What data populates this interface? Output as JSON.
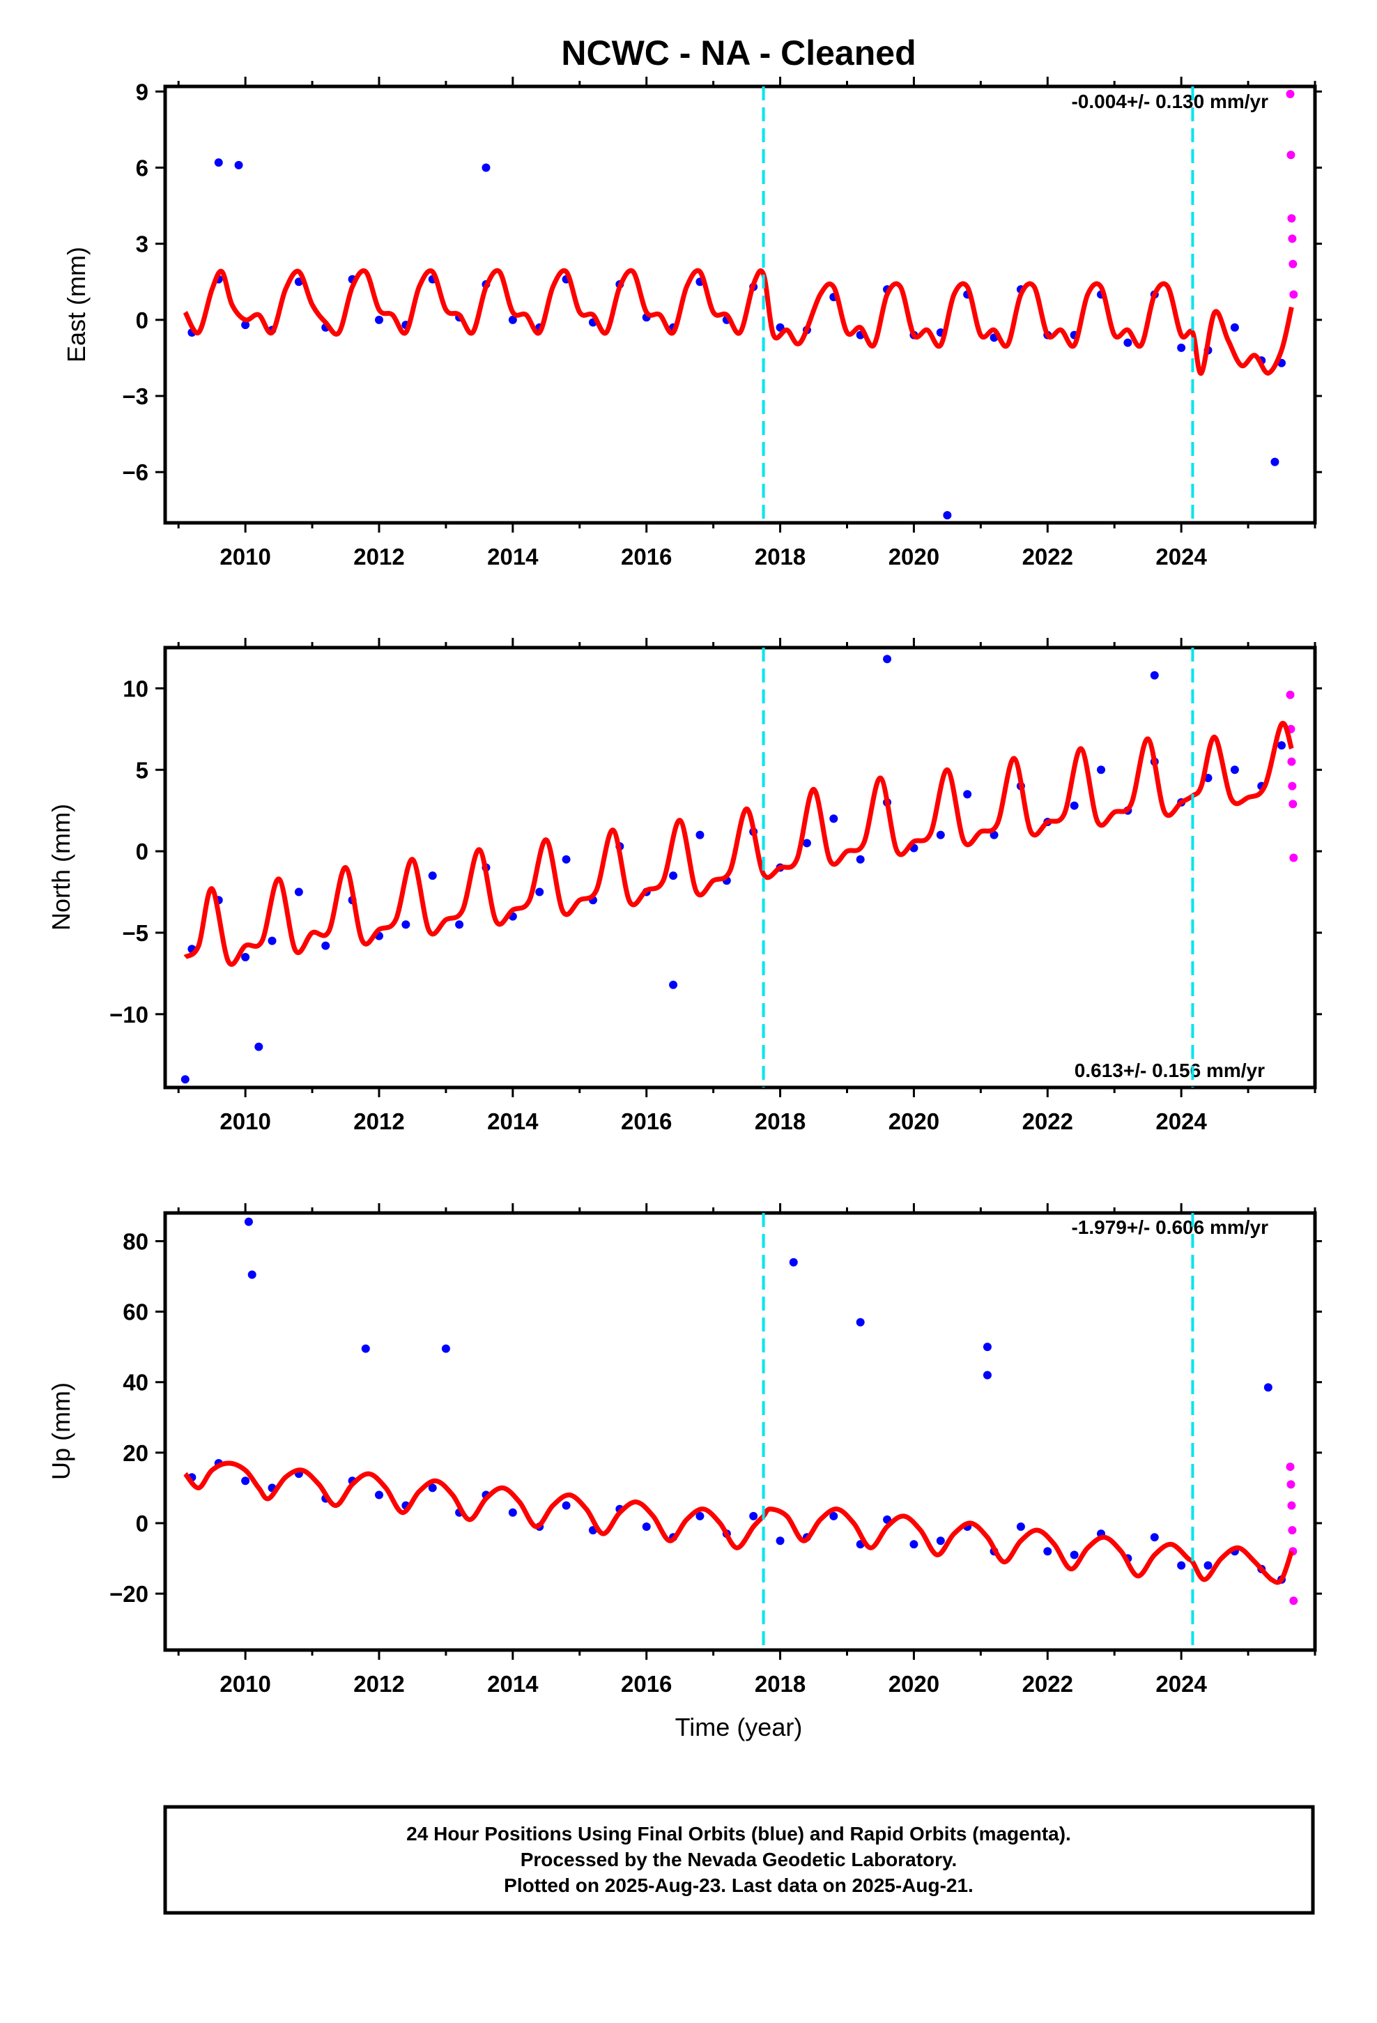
{
  "title": "NCWC  - NA - Cleaned",
  "xlabel": "Time (year)",
  "x_ticks": [
    2010,
    2012,
    2014,
    2016,
    2018,
    2020,
    2022,
    2024
  ],
  "xlim": [
    2008.8,
    2026.0
  ],
  "equipment_change_epochs": [
    2017.75,
    2024.17
  ],
  "colors": {
    "final_orbits": "#0000ff",
    "rapid_orbits": "#ff00ff",
    "model": "#ff0000",
    "equipment_change": "#00e5ee"
  },
  "footer": {
    "line1": "24 Hour Positions Using Final Orbits (blue) and Rapid Orbits (magenta).",
    "line2": "Processed by the Nevada Geodetic Laboratory.",
    "line3": "Plotted on 2025-Aug-23. Last data on 2025-Aug-21."
  },
  "chart_data": [
    {
      "type": "scatter",
      "id": "east",
      "ylabel": "East (mm)",
      "ylim": [
        -8,
        9.2
      ],
      "y_ticks": [
        9,
        6,
        3,
        0,
        -3,
        -6
      ],
      "y_tick_labels": [
        "9",
        "6",
        "3",
        "0",
        "−3",
        "−6"
      ],
      "rate_text": "-0.004+/- 0.130 mm/yr",
      "rate_position": "top-right",
      "series": [
        {
          "name": "Final Orbits",
          "x": [
            2009.2,
            2009.6,
            2010.0,
            2010.4,
            2010.8,
            2011.2,
            2011.6,
            2012.0,
            2012.4,
            2012.8,
            2013.2,
            2013.6,
            2014.0,
            2014.4,
            2014.8,
            2015.2,
            2015.6,
            2016.0,
            2016.4,
            2016.8,
            2017.2,
            2017.6,
            2018.0,
            2018.4,
            2018.8,
            2019.2,
            2019.6,
            2020.0,
            2020.4,
            2020.8,
            2021.2,
            2021.6,
            2022.0,
            2022.4,
            2022.8,
            2023.2,
            2023.6,
            2024.0,
            2024.4,
            2024.8,
            2025.2,
            2025.5
          ],
          "y": [
            -0.5,
            1.6,
            -0.2,
            -0.4,
            1.5,
            -0.3,
            1.6,
            0.0,
            -0.2,
            1.6,
            0.1,
            1.4,
            0.0,
            -0.3,
            1.6,
            -0.1,
            1.4,
            0.1,
            -0.3,
            1.5,
            0.0,
            1.3,
            -0.3,
            -0.4,
            0.9,
            -0.6,
            1.2,
            -0.6,
            -0.5,
            1.0,
            -0.7,
            1.2,
            -0.6,
            -0.6,
            1.0,
            -0.9,
            1.0,
            -1.1,
            -1.2,
            -0.3,
            -1.6,
            -1.7
          ]
        },
        {
          "name": "Rapid Orbits",
          "x": [
            2025.63,
            2025.64,
            2025.65,
            2025.66,
            2025.67,
            2025.68
          ],
          "y": [
            8.9,
            6.5,
            4.0,
            3.2,
            2.2,
            1.0
          ]
        }
      ],
      "outliers": {
        "x": [
          2009.6,
          2009.9,
          2013.6,
          2020.5,
          2025.4
        ],
        "y": [
          6.2,
          6.1,
          6.0,
          -7.7,
          -5.6
        ]
      },
      "model": {
        "x": [
          2009.1,
          2009.3,
          2009.5,
          2009.65,
          2009.8,
          2010.0,
          2010.2,
          2010.4,
          2010.6,
          2010.8,
          2011.0,
          2011.2,
          2011.4,
          2011.6,
          2011.8,
          2012.0,
          2012.2,
          2012.4,
          2012.6,
          2012.8,
          2013.0,
          2013.2,
          2013.4,
          2013.6,
          2013.8,
          2014.0,
          2014.2,
          2014.4,
          2014.6,
          2014.8,
          2015.0,
          2015.2,
          2015.4,
          2015.6,
          2015.8,
          2016.0,
          2016.2,
          2016.4,
          2016.6,
          2016.8,
          2017.0,
          2017.2,
          2017.4,
          2017.6,
          2017.75,
          2017.9,
          2018.1,
          2018.3,
          2018.6,
          2018.8,
          2019.0,
          2019.2,
          2019.4,
          2019.6,
          2019.8,
          2020.0,
          2020.2,
          2020.4,
          2020.6,
          2020.8,
          2021.0,
          2021.2,
          2021.4,
          2021.6,
          2021.8,
          2022.0,
          2022.2,
          2022.4,
          2022.6,
          2022.8,
          2023.0,
          2023.2,
          2023.4,
          2023.6,
          2023.8,
          2024.0,
          2024.17,
          2024.3,
          2024.5,
          2024.7,
          2024.9,
          2025.1,
          2025.3,
          2025.5,
          2025.65
        ],
        "y": [
          0.3,
          -0.5,
          1.2,
          1.9,
          0.6,
          0.0,
          0.2,
          -0.5,
          1.2,
          1.9,
          0.6,
          -0.1,
          -0.5,
          1.3,
          1.9,
          0.4,
          0.2,
          -0.5,
          1.3,
          1.9,
          0.4,
          0.2,
          -0.5,
          1.3,
          1.9,
          0.3,
          0.2,
          -0.5,
          1.3,
          1.9,
          0.3,
          0.2,
          -0.5,
          1.3,
          1.9,
          0.3,
          0.2,
          -0.5,
          1.3,
          1.9,
          0.3,
          0.2,
          -0.5,
          1.4,
          1.8,
          -0.6,
          -0.4,
          -0.9,
          1.0,
          1.3,
          -0.5,
          -0.3,
          -1.0,
          1.0,
          1.3,
          -0.6,
          -0.4,
          -1.0,
          1.0,
          1.3,
          -0.6,
          -0.4,
          -1.0,
          1.0,
          1.3,
          -0.6,
          -0.4,
          -1.0,
          1.0,
          1.3,
          -0.6,
          -0.4,
          -1.0,
          1.0,
          1.3,
          -0.6,
          -0.5,
          -2.1,
          0.3,
          -0.8,
          -1.8,
          -1.4,
          -2.1,
          -1.2,
          0.5
        ]
      }
    },
    {
      "type": "scatter",
      "id": "north",
      "ylabel": "North (mm)",
      "ylim": [
        -14.5,
        12.5
      ],
      "y_ticks": [
        10,
        5,
        0,
        -5,
        -10
      ],
      "y_tick_labels": [
        "10",
        "5",
        "0",
        "−5",
        "−10"
      ],
      "rate_text": "0.613+/- 0.156 mm/yr",
      "rate_position": "bottom-right",
      "series": [
        {
          "name": "Final Orbits",
          "x": [
            2009.2,
            2009.6,
            2010.0,
            2010.4,
            2010.8,
            2011.2,
            2011.6,
            2012.0,
            2012.4,
            2012.8,
            2013.2,
            2013.6,
            2014.0,
            2014.4,
            2014.8,
            2015.2,
            2015.6,
            2016.0,
            2016.4,
            2016.8,
            2017.2,
            2017.6,
            2018.0,
            2018.4,
            2018.8,
            2019.2,
            2019.6,
            2020.0,
            2020.4,
            2020.8,
            2021.2,
            2021.6,
            2022.0,
            2022.4,
            2022.8,
            2023.2,
            2023.6,
            2024.0,
            2024.4,
            2024.8,
            2025.2,
            2025.5
          ],
          "y": [
            -6.0,
            -3.0,
            -6.5,
            -5.5,
            -2.5,
            -5.8,
            -3.0,
            -5.2,
            -4.5,
            -1.5,
            -4.5,
            -1.0,
            -4.0,
            -2.5,
            -0.5,
            -3.0,
            0.3,
            -2.5,
            -1.5,
            1.0,
            -1.8,
            1.2,
            -1.0,
            0.5,
            2.0,
            -0.5,
            3.0,
            0.2,
            1.0,
            3.5,
            1.0,
            4.0,
            1.8,
            2.8,
            5.0,
            2.5,
            5.5,
            3.0,
            4.5,
            5.0,
            4.0,
            6.5
          ]
        },
        {
          "name": "Rapid Orbits",
          "x": [
            2025.63,
            2025.64,
            2025.65,
            2025.66,
            2025.67,
            2025.68
          ],
          "y": [
            9.6,
            7.5,
            5.5,
            4.0,
            2.9,
            -0.4
          ]
        }
      ],
      "outliers": {
        "x": [
          2009.1,
          2010.2,
          2016.4,
          2019.6,
          2023.6
        ],
        "y": [
          -14.0,
          -12.0,
          -8.2,
          11.8,
          10.8
        ]
      },
      "model": {
        "x": [
          2009.1,
          2009.3,
          2009.5,
          2009.75,
          2010.0,
          2010.25,
          2010.5,
          2010.75,
          2011.0,
          2011.25,
          2011.5,
          2011.75,
          2012.0,
          2012.25,
          2012.5,
          2012.75,
          2013.0,
          2013.25,
          2013.5,
          2013.75,
          2014.0,
          2014.25,
          2014.5,
          2014.75,
          2015.0,
          2015.25,
          2015.5,
          2015.75,
          2016.0,
          2016.25,
          2016.5,
          2016.75,
          2017.0,
          2017.25,
          2017.5,
          2017.75,
          2018.0,
          2018.25,
          2018.5,
          2018.75,
          2019.0,
          2019.25,
          2019.5,
          2019.75,
          2020.0,
          2020.25,
          2020.5,
          2020.75,
          2021.0,
          2021.25,
          2021.5,
          2021.75,
          2022.0,
          2022.25,
          2022.5,
          2022.75,
          2023.0,
          2023.25,
          2023.5,
          2023.75,
          2024.0,
          2024.17,
          2024.3,
          2024.5,
          2024.75,
          2025.0,
          2025.25,
          2025.5,
          2025.65
        ],
        "y": [
          -6.5,
          -5.8,
          -2.3,
          -6.8,
          -5.8,
          -5.5,
          -1.7,
          -6.1,
          -5.0,
          -4.9,
          -1.0,
          -5.5,
          -4.8,
          -4.2,
          -0.5,
          -4.9,
          -4.2,
          -3.6,
          0.1,
          -4.3,
          -3.6,
          -3.0,
          0.7,
          -3.7,
          -3.0,
          -2.4,
          1.3,
          -3.1,
          -2.4,
          -1.8,
          1.9,
          -2.5,
          -1.8,
          -1.2,
          2.6,
          -1.4,
          -1.0,
          -0.5,
          3.8,
          -0.6,
          0.0,
          0.5,
          4.5,
          0.0,
          0.6,
          1.1,
          5.0,
          0.6,
          1.2,
          1.7,
          5.7,
          1.2,
          1.8,
          2.3,
          6.3,
          1.8,
          2.4,
          2.9,
          6.9,
          2.4,
          3.0,
          3.4,
          4.0,
          7.0,
          3.2,
          3.3,
          4.0,
          7.8,
          6.3
        ]
      }
    },
    {
      "type": "scatter",
      "id": "up",
      "ylabel": "Up (mm)",
      "ylim": [
        -36,
        88
      ],
      "y_ticks": [
        80,
        60,
        40,
        20,
        0,
        -20
      ],
      "y_tick_labels": [
        "80",
        "60",
        "40",
        "20",
        "0",
        "−20"
      ],
      "rate_text": "-1.979+/- 0.606 mm/yr",
      "rate_position": "top-right",
      "series": [
        {
          "name": "Final Orbits",
          "x": [
            2009.2,
            2009.6,
            2010.0,
            2010.4,
            2010.8,
            2011.2,
            2011.6,
            2012.0,
            2012.4,
            2012.8,
            2013.2,
            2013.6,
            2014.0,
            2014.4,
            2014.8,
            2015.2,
            2015.6,
            2016.0,
            2016.4,
            2016.8,
            2017.2,
            2017.6,
            2018.0,
            2018.4,
            2018.8,
            2019.2,
            2019.6,
            2020.0,
            2020.4,
            2020.8,
            2021.2,
            2021.6,
            2022.0,
            2022.4,
            2022.8,
            2023.2,
            2023.6,
            2024.0,
            2024.4,
            2024.8,
            2025.2,
            2025.5
          ],
          "y": [
            13,
            17,
            12,
            10,
            14,
            7,
            12,
            8,
            5,
            10,
            3,
            8,
            3,
            -1,
            5,
            -2,
            4,
            -1,
            -4,
            2,
            -3,
            2,
            -5,
            -4,
            2,
            -6,
            1,
            -6,
            -5,
            -1,
            -8,
            -1,
            -8,
            -9,
            -3,
            -10,
            -4,
            -12,
            -12,
            -8,
            -13,
            -16
          ]
        },
        {
          "name": "Rapid Orbits",
          "x": [
            2025.63,
            2025.64,
            2025.65,
            2025.66,
            2025.67,
            2025.68
          ],
          "y": [
            16,
            11,
            5,
            -2,
            -8,
            -22
          ]
        }
      ],
      "outliers": {
        "x": [
          2010.05,
          2010.1,
          2011.8,
          2013.0,
          2018.2,
          2019.2,
          2021.1,
          2021.1,
          2025.3
        ],
        "y": [
          85.5,
          70.5,
          49.5,
          49.5,
          74,
          57,
          50,
          42,
          38.5
        ]
      },
      "model": {
        "x": [
          2009.1,
          2009.3,
          2009.5,
          2009.75,
          2010.0,
          2010.2,
          2010.35,
          2010.6,
          2010.85,
          2011.1,
          2011.35,
          2011.6,
          2011.85,
          2012.1,
          2012.35,
          2012.6,
          2012.85,
          2013.1,
          2013.35,
          2013.6,
          2013.85,
          2014.1,
          2014.35,
          2014.6,
          2014.85,
          2015.1,
          2015.35,
          2015.6,
          2015.85,
          2016.1,
          2016.35,
          2016.6,
          2016.85,
          2017.1,
          2017.35,
          2017.6,
          2017.75,
          2017.85,
          2018.1,
          2018.35,
          2018.6,
          2018.85,
          2019.1,
          2019.35,
          2019.6,
          2019.85,
          2020.1,
          2020.35,
          2020.6,
          2020.85,
          2021.1,
          2021.35,
          2021.6,
          2021.85,
          2022.1,
          2022.35,
          2022.6,
          2022.85,
          2023.1,
          2023.35,
          2023.6,
          2023.85,
          2024.1,
          2024.17,
          2024.35,
          2024.6,
          2024.85,
          2025.1,
          2025.35,
          2025.5,
          2025.65
        ],
        "y": [
          14,
          10,
          15,
          17,
          15,
          10,
          7,
          13,
          15,
          11,
          5,
          11,
          14,
          10,
          3,
          9,
          12,
          8,
          1,
          7,
          10,
          6,
          -1,
          5,
          8,
          4,
          -3,
          3,
          6,
          2,
          -5,
          1,
          4,
          0,
          -7,
          -1,
          2,
          4,
          2,
          -5,
          1,
          4,
          0,
          -7,
          -1,
          2,
          -2,
          -9,
          -3,
          0,
          -4,
          -11,
          -5,
          -2,
          -6,
          -13,
          -7,
          -4,
          -8,
          -15,
          -9,
          -6,
          -10,
          -11,
          -16,
          -10,
          -7,
          -11,
          -16,
          -16,
          -8
        ]
      }
    }
  ]
}
